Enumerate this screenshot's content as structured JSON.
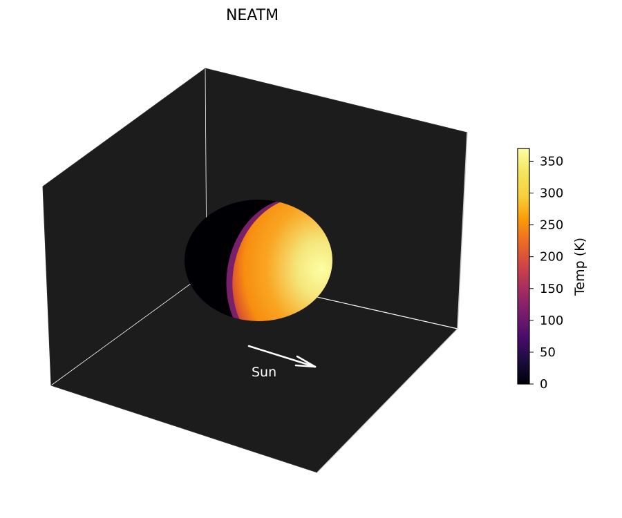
{
  "chart_data": {
    "type": "surface3d",
    "title": "NEATM",
    "model": "NEATM",
    "background_color": "#1c1c1c",
    "colormap": "inferno",
    "colorbar": {
      "label": "Temp (K)",
      "ticks": [
        0,
        50,
        100,
        150,
        200,
        250,
        300,
        350
      ],
      "min": 0,
      "max": 370,
      "placement": "right"
    },
    "temperature": {
      "night_side": 0,
      "subsolar_max": 370
    },
    "annotations": [
      {
        "text": "Sun",
        "kind": "arrow",
        "color": "#ffffff"
      }
    ],
    "axes": {
      "ticks_visible": false,
      "grid": false
    }
  }
}
